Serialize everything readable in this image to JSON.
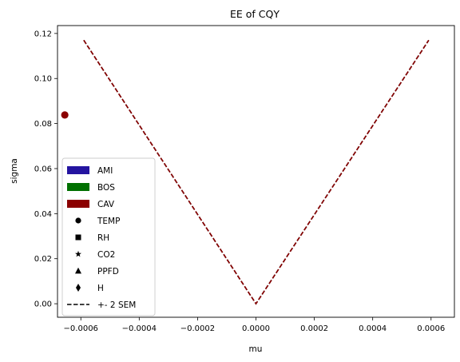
{
  "chart_data": {
    "type": "line",
    "title": "EE of CQY",
    "xlabel": "mu",
    "ylabel": "sigma",
    "xlim": [
      -0.00068,
      0.00068
    ],
    "ylim": [
      -0.006,
      0.1235
    ],
    "x_ticks": [
      -0.0006,
      -0.0004,
      -0.0002,
      0.0,
      0.0002,
      0.0004,
      0.0006
    ],
    "x_tick_labels": [
      "−0.0006",
      "−0.0004",
      "−0.0002",
      "0.0000",
      "0.0002",
      "0.0004",
      "0.0006"
    ],
    "y_ticks": [
      0.0,
      0.02,
      0.04,
      0.06,
      0.08,
      0.1,
      0.12
    ],
    "y_tick_labels": [
      "0.00",
      "0.02",
      "0.04",
      "0.06",
      "0.08",
      "0.10",
      "0.12"
    ],
    "grid": false,
    "legend_position": "lower-left",
    "series": [
      {
        "name": "+- 2 SEM",
        "style": "dashed",
        "color": "#000000",
        "x": [
          -0.00059,
          0.0,
          0.000592
        ],
        "y": [
          0.117,
          0.0,
          0.117
        ]
      },
      {
        "style": "dashed",
        "color": "#8b0000",
        "x": [
          -0.00059,
          0.0,
          0.000592
        ],
        "y": [
          0.117,
          0.0,
          0.117
        ]
      }
    ],
    "points": [
      {
        "x": -0.000655,
        "y": 0.0838,
        "marker": "circle",
        "color": "#8b0000"
      }
    ],
    "legend": [
      {
        "label": "AMI",
        "kind": "patch",
        "color": "#2414a0"
      },
      {
        "label": "BOS",
        "kind": "patch",
        "color": "#007000"
      },
      {
        "label": "CAV",
        "kind": "patch",
        "color": "#8b0000"
      },
      {
        "label": "TEMP",
        "kind": "marker",
        "marker": "circle",
        "color": "#000000"
      },
      {
        "label": "RH",
        "kind": "marker",
        "marker": "square",
        "color": "#000000"
      },
      {
        "label": "CO2",
        "kind": "marker",
        "marker": "star",
        "color": "#000000"
      },
      {
        "label": "PPFD",
        "kind": "marker",
        "marker": "triangle",
        "color": "#000000"
      },
      {
        "label": "H",
        "kind": "marker",
        "marker": "diamond",
        "color": "#000000"
      },
      {
        "label": "+- 2 SEM",
        "kind": "line",
        "style": "dashed",
        "color": "#000000"
      }
    ]
  }
}
